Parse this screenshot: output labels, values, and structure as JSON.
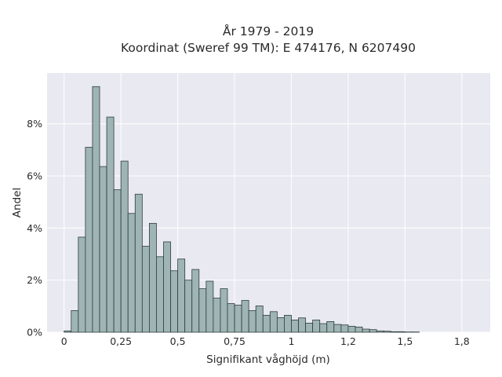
{
  "chart_data": {
    "type": "bar",
    "title_line1": "År 1979 - 2019",
    "title_line2": "Koordinat (Sweref 99 TM): E 474176, N 6207490",
    "xlabel": "Signifikant våghöjd (m)",
    "ylabel": "Andel",
    "xlim": [
      -0.075,
      1.875
    ],
    "ylim": [
      0,
      0.0995
    ],
    "x_ticks": [
      {
        "value": 0,
        "label": "0"
      },
      {
        "value": 0.25,
        "label": "0,25"
      },
      {
        "value": 0.5,
        "label": "0,5"
      },
      {
        "value": 0.75,
        "label": "0,75"
      },
      {
        "value": 1,
        "label": "1"
      },
      {
        "value": 1.25,
        "label": "1,2"
      },
      {
        "value": 1.5,
        "label": "1,5"
      },
      {
        "value": 1.75,
        "label": "1,8"
      }
    ],
    "y_ticks": [
      {
        "value": 0,
        "label": "0%"
      },
      {
        "value": 0.02,
        "label": "2%"
      },
      {
        "value": 0.04,
        "label": "4%"
      },
      {
        "value": 0.06,
        "label": "6%"
      },
      {
        "value": 0.08,
        "label": "8%"
      }
    ],
    "bin_width": 0.03125,
    "bin_start": 0.0,
    "values": [
      0.0005,
      0.0083,
      0.0365,
      0.071,
      0.0943,
      0.0636,
      0.0826,
      0.0547,
      0.0657,
      0.0456,
      0.053,
      0.033,
      0.0418,
      0.029,
      0.0347,
      0.0236,
      0.0281,
      0.02,
      0.0241,
      0.0167,
      0.0196,
      0.0131,
      0.0167,
      0.011,
      0.0104,
      0.0122,
      0.0083,
      0.0101,
      0.0065,
      0.0079,
      0.0056,
      0.0065,
      0.0047,
      0.0055,
      0.0035,
      0.0047,
      0.0033,
      0.0041,
      0.003,
      0.0028,
      0.0023,
      0.002,
      0.0012,
      0.001,
      0.0005,
      0.0004,
      0.0002,
      0.0002,
      0.0001,
      0.0001
    ],
    "grid": true,
    "colors": {
      "bar_fill": "#9fb4b4",
      "bar_edge": "#2e3d3d",
      "plot_bg": "#e9e9f1",
      "grid": "#ffffff"
    }
  }
}
